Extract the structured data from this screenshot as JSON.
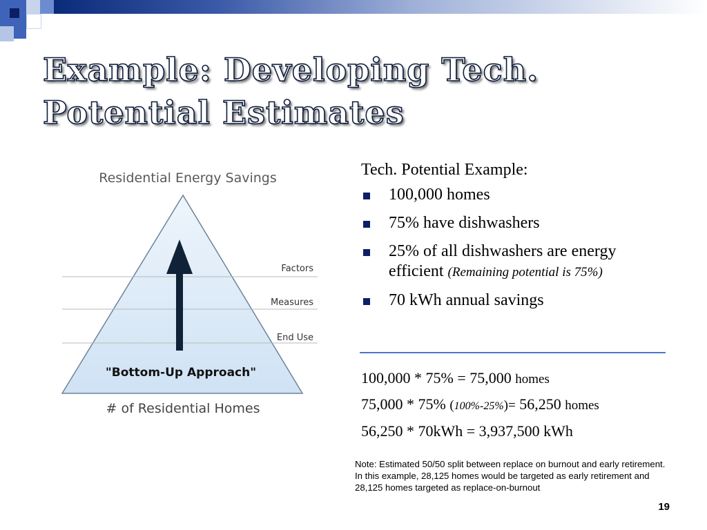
{
  "slide": {
    "title_lines": [
      "Example: Developing Tech.",
      "Potential Estimates"
    ],
    "page_number": "19",
    "colors": {
      "title_fill": "#ffffff",
      "title_outline": "#0d1b3a",
      "accent_navy": "#0b1f66",
      "divider_blue": "#4a74c9",
      "pyramid_fill": "#dcebf8",
      "arrow": "#0f2238"
    }
  },
  "diagram": {
    "title": "Residential Energy Savings",
    "levels": [
      "Factors",
      "Measures",
      "End Use"
    ],
    "approach_label": "\"Bottom-Up Approach\"",
    "base_label": "# of Residential Homes"
  },
  "example": {
    "intro": "Tech. Potential Example:",
    "bullets": [
      {
        "text": "100,000 homes"
      },
      {
        "text": "75% have dishwashers"
      },
      {
        "text": "25% of all dishwashers are energy efficient ",
        "note": "(Remaining potential is 75%)"
      },
      {
        "text": "70 kWh annual savings"
      }
    ]
  },
  "calculations": {
    "line1_main": "100,000 * 75% = 75,000 ",
    "line1_unit": "homes",
    "line2_main": "75,000 * 75% ",
    "line2_paren_open": "(",
    "line2_paren_text": "100%-25%",
    "line2_paren_close": ")=",
    "line2_result": " 56,250 ",
    "line2_unit": "homes",
    "line3": "56,250 * 70kWh = 3,937,500 kWh"
  },
  "note": "Note: Estimated 50/50 split between replace on burnout and early retirement. In this example, 28,125 homes would be targeted as early retirement and 28,125 homes targeted as replace-on-burnout"
}
